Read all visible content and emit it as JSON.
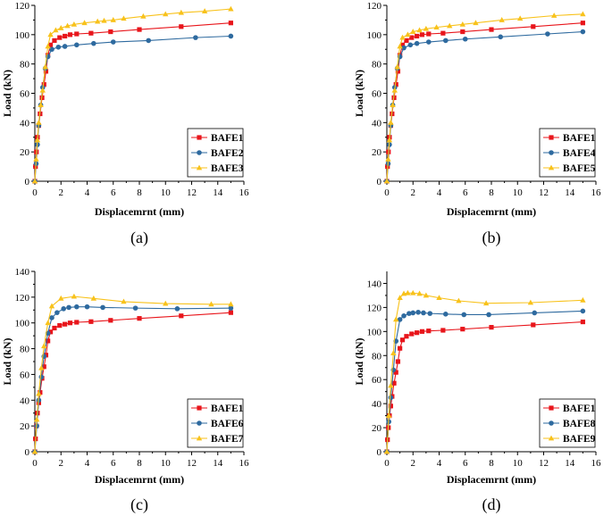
{
  "chart_data": [
    {
      "type": "line",
      "caption": "(a)",
      "xlabel": "Displacemrnt (mm)",
      "ylabel": "Load (kN)",
      "xlim": [
        0,
        16
      ],
      "ylim": [
        0,
        120
      ],
      "xticks": [
        0,
        2,
        4,
        6,
        8,
        10,
        12,
        14,
        16
      ],
      "yticks": [
        0,
        20,
        40,
        60,
        80,
        100,
        120
      ],
      "legend_position": "bottom-right",
      "series": [
        {
          "name": "BAFE1",
          "color": "#e8151b",
          "marker": "square",
          "x": [
            0,
            0.05,
            0.12,
            0.2,
            0.3,
            0.4,
            0.55,
            0.7,
            0.85,
            1.0,
            1.2,
            1.5,
            1.9,
            2.3,
            2.7,
            3.2,
            4.3,
            5.8,
            8.0,
            11.2,
            15.0
          ],
          "y": [
            0,
            10,
            20,
            30,
            38,
            46,
            57,
            66,
            75,
            86,
            93,
            96,
            98,
            99,
            100,
            100.5,
            101,
            102,
            103.5,
            105.5,
            108
          ]
        },
        {
          "name": "BAFE2",
          "color": "#2e6a9f",
          "marker": "circle",
          "x": [
            0,
            0.1,
            0.2,
            0.3,
            0.45,
            0.6,
            0.8,
            1.0,
            1.3,
            1.8,
            2.3,
            3.2,
            4.5,
            6.0,
            8.7,
            12.3,
            15.0
          ],
          "y": [
            0,
            12,
            25,
            38,
            52,
            64,
            77,
            85,
            90,
            91.5,
            92,
            93,
            94,
            95,
            96,
            98,
            99
          ]
        },
        {
          "name": "BAFE3",
          "color": "#f8c21b",
          "marker": "triangle",
          "x": [
            0,
            0.1,
            0.2,
            0.3,
            0.45,
            0.6,
            0.8,
            1.0,
            1.2,
            1.6,
            2.0,
            2.5,
            3.0,
            3.8,
            4.8,
            5.3,
            6.0,
            6.8,
            8.3,
            10.0,
            11.2,
            13.0,
            15.0
          ],
          "y": [
            0,
            15,
            28,
            40,
            52,
            62,
            78,
            92,
            100,
            103,
            104.5,
            106,
            107,
            108,
            109,
            109.5,
            110,
            111,
            112.5,
            114,
            115,
            116,
            117.5
          ]
        }
      ]
    },
    {
      "type": "line",
      "caption": "(b)",
      "xlabel": "Displacemrnt (mm)",
      "ylabel": "Load (kN)",
      "xlim": [
        0,
        16
      ],
      "ylim": [
        0,
        120
      ],
      "xticks": [
        0,
        2,
        4,
        6,
        8,
        10,
        12,
        14,
        16
      ],
      "yticks": [
        0,
        20,
        40,
        60,
        80,
        100,
        120
      ],
      "legend_position": "bottom-right",
      "series": [
        {
          "name": "BAFE1",
          "color": "#e8151b",
          "marker": "square",
          "x": [
            0,
            0.05,
            0.12,
            0.2,
            0.3,
            0.4,
            0.55,
            0.7,
            0.85,
            1.0,
            1.2,
            1.5,
            1.9,
            2.3,
            2.7,
            3.2,
            4.3,
            5.8,
            8.0,
            11.2,
            15.0
          ],
          "y": [
            0,
            10,
            20,
            30,
            38,
            46,
            57,
            66,
            75,
            86,
            93,
            96,
            98,
            99,
            100,
            100.5,
            101,
            102,
            103.5,
            105.5,
            108
          ]
        },
        {
          "name": "BAFE4",
          "color": "#2e6a9f",
          "marker": "circle",
          "x": [
            0,
            0.1,
            0.2,
            0.3,
            0.45,
            0.6,
            0.8,
            1.0,
            1.3,
            1.8,
            2.3,
            3.2,
            4.5,
            6.0,
            8.7,
            12.3,
            15.0
          ],
          "y": [
            0,
            12,
            25,
            38,
            52,
            64,
            77,
            85,
            91,
            93,
            94,
            95,
            96,
            97,
            98.5,
            100.5,
            102
          ]
        },
        {
          "name": "BAFE5",
          "color": "#f8c21b",
          "marker": "triangle",
          "x": [
            0,
            0.1,
            0.2,
            0.3,
            0.45,
            0.6,
            0.8,
            1.0,
            1.2,
            1.6,
            2.0,
            2.5,
            3.0,
            3.8,
            4.8,
            5.8,
            6.8,
            8.8,
            10.2,
            12.8,
            15.0
          ],
          "y": [
            0,
            15,
            28,
            40,
            52,
            62,
            78,
            92,
            98,
            100,
            102,
            103,
            104,
            105,
            106,
            107,
            108,
            110,
            111,
            113,
            114
          ]
        }
      ]
    },
    {
      "type": "line",
      "caption": "(c)",
      "xlabel": "Displacemrnt (mm)",
      "ylabel": "Load (kN)",
      "xlim": [
        0,
        16
      ],
      "ylim": [
        0,
        140
      ],
      "xticks": [
        0,
        2,
        4,
        6,
        8,
        10,
        12,
        14,
        16
      ],
      "yticks": [
        0,
        20,
        40,
        60,
        80,
        100,
        120,
        140
      ],
      "legend_position": "bottom-right",
      "series": [
        {
          "name": "BAFE1",
          "color": "#e8151b",
          "marker": "square",
          "x": [
            0,
            0.05,
            0.12,
            0.2,
            0.3,
            0.4,
            0.55,
            0.7,
            0.85,
            1.0,
            1.2,
            1.5,
            1.9,
            2.3,
            2.7,
            3.2,
            4.3,
            5.8,
            8.0,
            11.2,
            15.0
          ],
          "y": [
            0,
            10,
            20,
            30,
            38,
            46,
            57,
            66,
            75,
            86,
            93,
            96,
            98,
            99,
            100,
            100.5,
            101,
            102,
            103.5,
            105.5,
            108
          ]
        },
        {
          "name": "BAFE6",
          "color": "#2e6a9f",
          "marker": "circle",
          "x": [
            0,
            0.15,
            0.3,
            0.5,
            0.7,
            1.0,
            1.3,
            1.7,
            2.2,
            2.6,
            3.2,
            4.0,
            5.2,
            7.7,
            10.9,
            15.0
          ],
          "y": [
            0,
            20,
            40,
            58,
            74,
            92,
            104,
            108,
            111,
            112,
            112.5,
            112.5,
            112,
            111.5,
            111,
            111.5
          ]
        },
        {
          "name": "BAFE7",
          "color": "#f8c21b",
          "marker": "triangle",
          "x": [
            0,
            0.15,
            0.3,
            0.5,
            0.7,
            1.0,
            1.3,
            2.0,
            3.0,
            4.5,
            6.8,
            10.0,
            13.5,
            15.0
          ],
          "y": [
            0,
            25,
            45,
            65,
            82,
            100,
            113,
            119,
            120.5,
            119,
            116.5,
            115,
            114.5,
            114.5
          ]
        }
      ]
    },
    {
      "type": "line",
      "caption": "(d)",
      "xlabel": "Displacemrnt (mm)",
      "ylabel": "Load (kN)",
      "xlim": [
        0,
        16
      ],
      "ylim": [
        0,
        150
      ],
      "xticks": [
        0,
        2,
        4,
        6,
        8,
        10,
        12,
        14,
        16
      ],
      "yticks": [
        0,
        20,
        40,
        60,
        80,
        100,
        120,
        140
      ],
      "legend_position": "bottom-right",
      "series": [
        {
          "name": "BAFE1",
          "color": "#e8151b",
          "marker": "square",
          "x": [
            0,
            0.05,
            0.12,
            0.2,
            0.3,
            0.4,
            0.55,
            0.7,
            0.85,
            1.0,
            1.2,
            1.5,
            1.9,
            2.3,
            2.7,
            3.2,
            4.3,
            5.8,
            8.0,
            11.2,
            15.0
          ],
          "y": [
            0,
            10,
            20,
            30,
            38,
            46,
            57,
            66,
            75,
            86,
            93,
            96,
            98,
            99,
            100,
            100.5,
            101,
            102,
            103.5,
            105.5,
            108
          ]
        },
        {
          "name": "BAFE8",
          "color": "#2e6a9f",
          "marker": "circle",
          "x": [
            0,
            0.15,
            0.3,
            0.5,
            0.7,
            1.0,
            1.3,
            1.7,
            2.0,
            2.4,
            2.8,
            3.3,
            4.5,
            5.9,
            7.8,
            11.3,
            15.0
          ],
          "y": [
            0,
            25,
            45,
            68,
            92,
            110,
            113,
            115,
            115.5,
            116,
            115.5,
            115,
            114.5,
            114,
            114,
            115.5,
            117
          ]
        },
        {
          "name": "BAFE9",
          "color": "#f8c21b",
          "marker": "triangle",
          "x": [
            0,
            0.15,
            0.3,
            0.5,
            0.7,
            1.0,
            1.3,
            1.6,
            2.0,
            2.5,
            3.0,
            4.0,
            5.5,
            7.6,
            11.0,
            15.0
          ],
          "y": [
            0,
            30,
            55,
            82,
            110,
            128,
            131.5,
            132,
            132,
            131.5,
            130,
            128,
            125.5,
            123.5,
            124,
            126
          ]
        }
      ]
    }
  ]
}
